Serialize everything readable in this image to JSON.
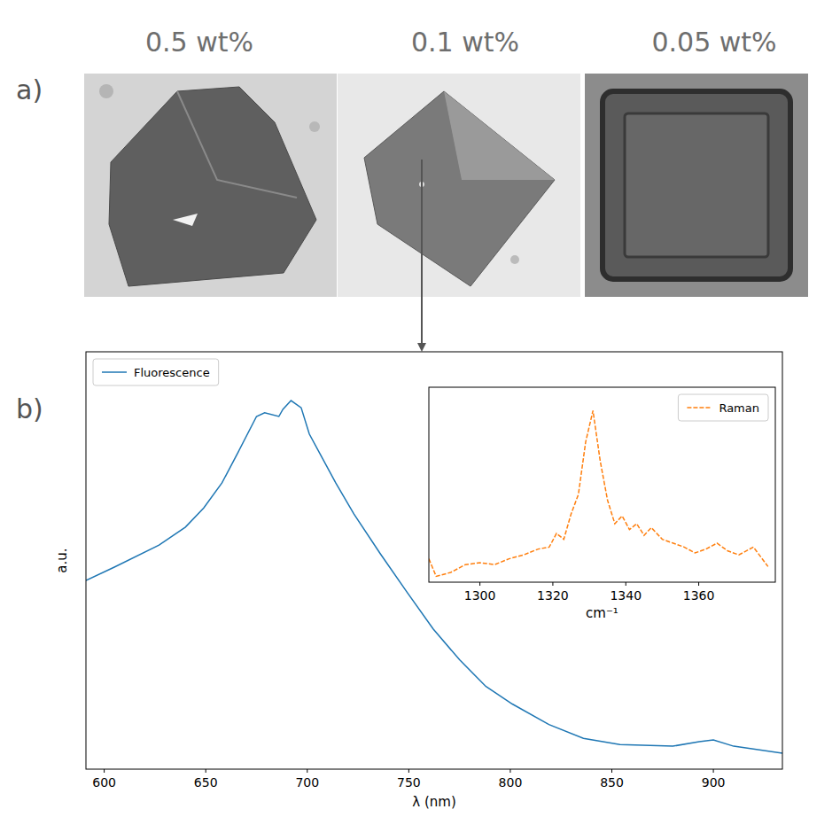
{
  "panels": {
    "a": {
      "label": "a)",
      "images": [
        {
          "label": "0.5 wt%"
        },
        {
          "label": "0.1 wt%"
        },
        {
          "label": "0.05 wt%"
        }
      ]
    },
    "b": {
      "label": "b)"
    }
  },
  "chart_data": [
    {
      "type": "line",
      "xlabel": "λ (nm)",
      "ylabel": "a.u.",
      "x": [
        591,
        605,
        627,
        640,
        649,
        658,
        666,
        675,
        679,
        686,
        688,
        692,
        697,
        701,
        714,
        723,
        736,
        749,
        762,
        775,
        788,
        801,
        819,
        836,
        854,
        880,
        893,
        900,
        910,
        934
      ],
      "series": [
        {
          "name": "Fluorescence",
          "color": "#1f77b4",
          "line_style": "solid",
          "values": [
            0.452,
            0.484,
            0.537,
            0.58,
            0.626,
            0.686,
            0.76,
            0.845,
            0.854,
            0.845,
            0.862,
            0.883,
            0.866,
            0.803,
            0.686,
            0.611,
            0.516,
            0.425,
            0.336,
            0.262,
            0.198,
            0.156,
            0.107,
            0.074,
            0.059,
            0.055,
            0.066,
            0.07,
            0.055,
            0.038
          ]
        }
      ],
      "xlim": [
        591,
        934
      ],
      "ylim": [
        0,
        1
      ],
      "xticks": [
        600,
        650,
        700,
        750,
        800,
        850,
        900
      ],
      "tick_labels": "x",
      "legend": "upper left"
    },
    {
      "type": "line",
      "xlabel": "cm⁻¹",
      "x": [
        1286,
        1288,
        1292,
        1296,
        1300,
        1304,
        1308,
        1312,
        1316,
        1319,
        1321,
        1323,
        1325,
        1327,
        1329,
        1331,
        1333,
        1335,
        1337,
        1339,
        1341,
        1343,
        1345,
        1347,
        1350,
        1353,
        1356,
        1359,
        1362,
        1365,
        1368,
        1371,
        1375,
        1379
      ],
      "series": [
        {
          "name": "Raman",
          "color": "#ff7f0e",
          "line_style": "dashed",
          "values": [
            0.12,
            0.03,
            0.05,
            0.09,
            0.1,
            0.09,
            0.12,
            0.14,
            0.17,
            0.18,
            0.25,
            0.22,
            0.35,
            0.45,
            0.72,
            0.88,
            0.62,
            0.42,
            0.3,
            0.34,
            0.27,
            0.3,
            0.24,
            0.28,
            0.22,
            0.2,
            0.18,
            0.15,
            0.17,
            0.2,
            0.16,
            0.14,
            0.18,
            0.08
          ]
        }
      ],
      "xlim": [
        1286,
        1381
      ],
      "ylim": [
        0,
        1
      ],
      "xticks": [
        1300,
        1320,
        1340,
        1360
      ],
      "tick_labels": "x",
      "legend": "upper right"
    }
  ]
}
